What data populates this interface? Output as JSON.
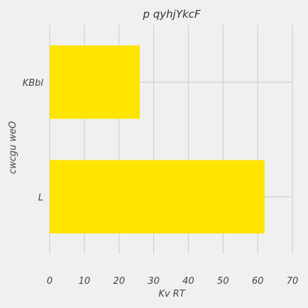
{
  "chart_data": {
    "type": "bar",
    "orientation": "horizontal",
    "title": "p qyhjYkcF",
    "xlabel": "Kv RT",
    "ylabel": "cwcgu weO",
    "categories": [
      "KBbl",
      "L"
    ],
    "series": [
      {
        "values": [
          26,
          62
        ],
        "color": "#ffe400"
      }
    ],
    "xlim": [
      0,
      70
    ],
    "xticks": [
      0,
      10,
      20,
      30,
      40,
      50,
      60,
      70
    ],
    "grid": true,
    "background": "#f0f0f0",
    "grid_color": "#cbcbcb"
  }
}
